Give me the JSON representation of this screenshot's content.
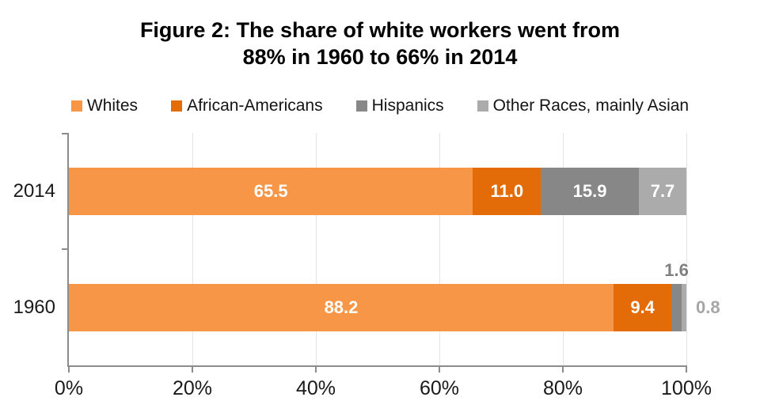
{
  "title": {
    "line1": "Figure 2: The share of white workers went from",
    "line2": "88% in 1960 to 66% in 2014"
  },
  "legend": [
    {
      "label": "Whites",
      "color": "#F79646"
    },
    {
      "label": "African-Americans",
      "color": "#E36C09"
    },
    {
      "label": "Hispanics",
      "color": "#878787"
    },
    {
      "label": "Other Races, mainly Asian",
      "color": "#ABABAB"
    }
  ],
  "chart_data": {
    "type": "bar",
    "orientation": "horizontal",
    "stacked": true,
    "title": "Figure 2: The share of white workers went from 88% in 1960 to 66% in 2014",
    "categories": [
      "2014",
      "1960"
    ],
    "series": [
      {
        "name": "Whites",
        "color": "#F79646",
        "values": [
          65.5,
          88.2
        ]
      },
      {
        "name": "African-Americans",
        "color": "#E36C09",
        "values": [
          11.0,
          9.4
        ]
      },
      {
        "name": "Hispanics",
        "color": "#878787",
        "values": [
          15.9,
          1.6
        ]
      },
      {
        "name": "Other Races, mainly Asian",
        "color": "#ABABAB",
        "values": [
          7.7,
          0.8
        ]
      }
    ],
    "xlim": [
      0,
      100
    ],
    "x_tick_positions": [
      0,
      20,
      40,
      60,
      80,
      100
    ],
    "x_tick_labels": [
      "0%",
      "20%",
      "40%",
      "60%",
      "80%",
      "100%"
    ],
    "grid": true,
    "legend_position": "top",
    "inside_label_color": "#ffffff",
    "outside_labels": [
      {
        "category": "1960",
        "series": "Hispanics",
        "placement": "above",
        "color": "#808080"
      },
      {
        "category": "1960",
        "series": "Other Races, mainly Asian",
        "placement": "right",
        "color": "#a6a6a6"
      }
    ]
  }
}
